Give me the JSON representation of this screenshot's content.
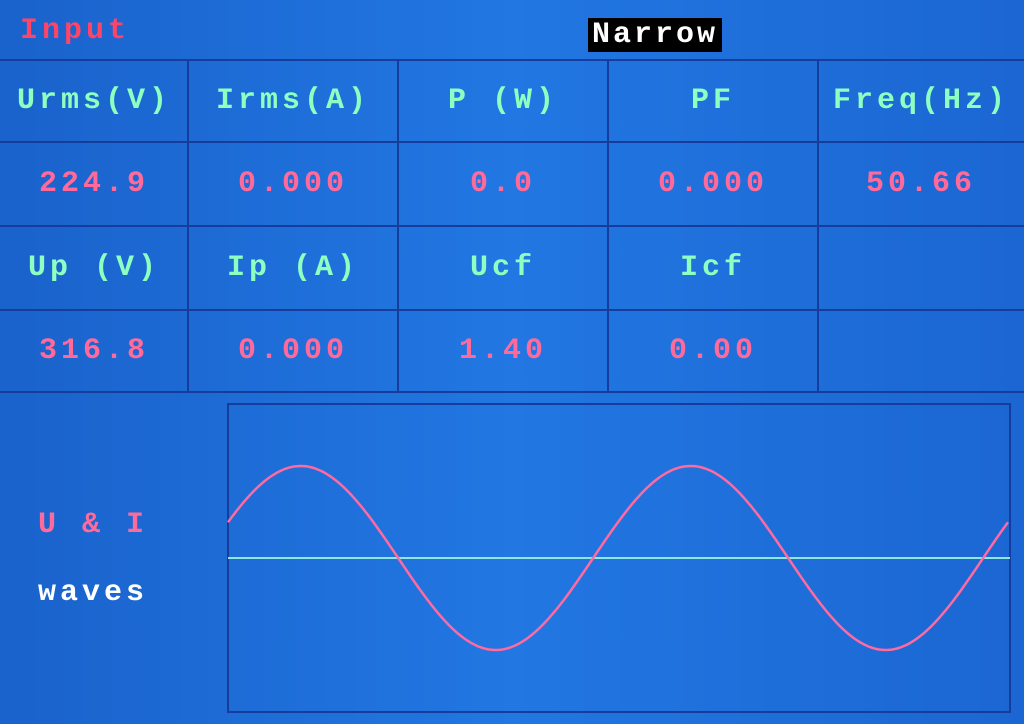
{
  "header": {
    "title": "Input",
    "mode": "Narrow"
  },
  "table": {
    "rows": [
      [
        "Urms(V)",
        "Irms(A)",
        "P (W)",
        "PF",
        "Freq(Hz)"
      ],
      [
        "224.9",
        "0.000",
        "0.0",
        "0.000",
        "50.66"
      ],
      [
        "Up (V)",
        "Ip (A)",
        "Ucf",
        "Icf"
      ],
      [
        "316.8",
        "0.000",
        "1.40",
        "0.00"
      ]
    ]
  },
  "waves": {
    "label_top": "U & I",
    "label_bottom": "waves"
  }
}
